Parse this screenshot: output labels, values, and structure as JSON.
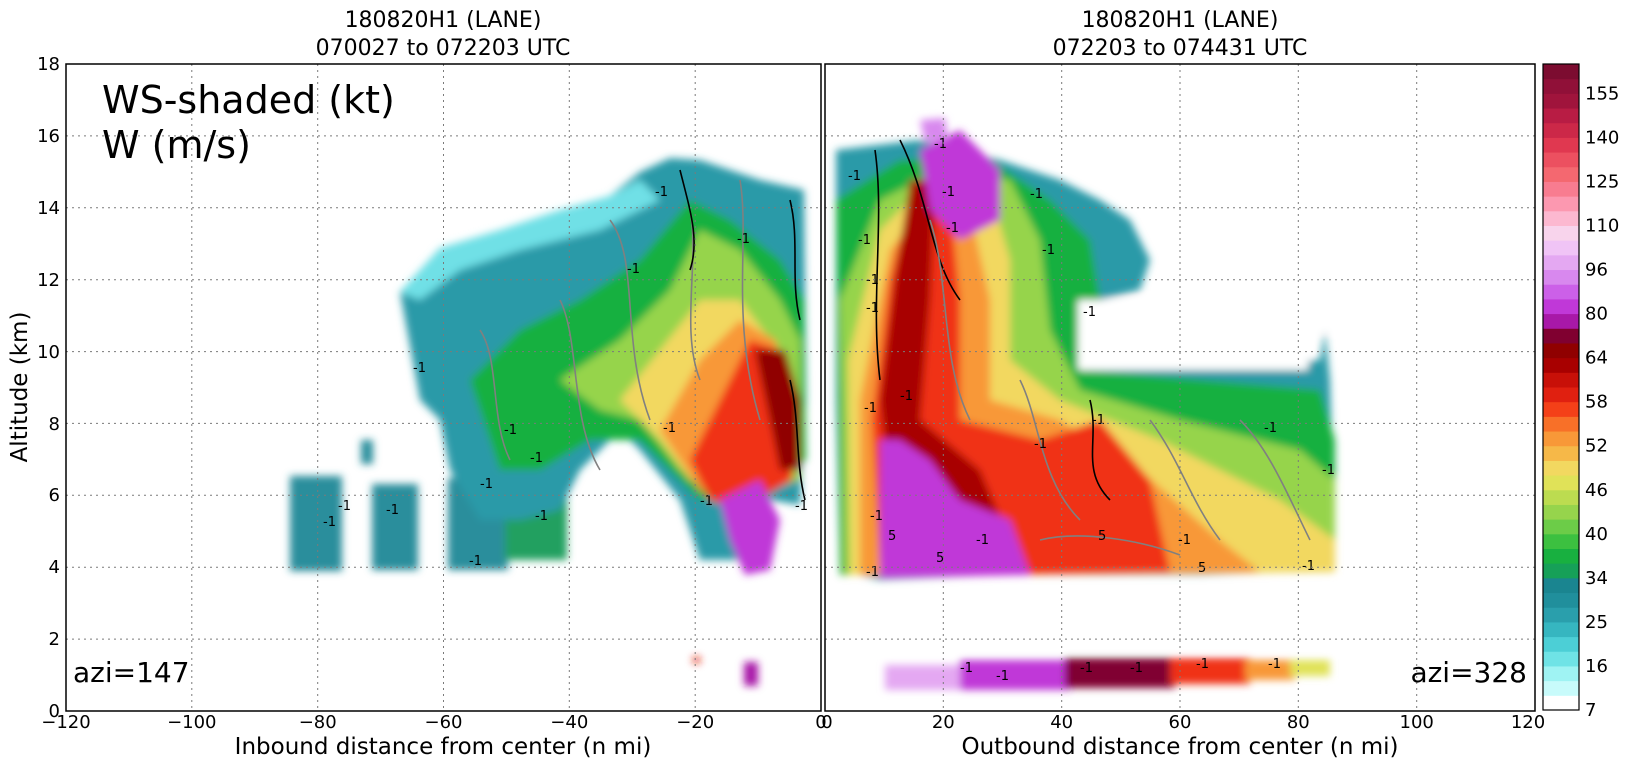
{
  "chart_data": {
    "type": "heatmap",
    "left_panel": {
      "title_line1": "180820H1 (LANE)",
      "title_line2": "070027 to 072203 UTC",
      "xlabel": "Inbound distance from center (n mi)",
      "ylabel": "Altitude (km)",
      "xlim": [
        -120,
        0
      ],
      "ylim": [
        0,
        18
      ],
      "x_ticks": [
        "−120",
        "−100",
        "−80",
        "−60",
        "−40",
        "−20",
        "0"
      ],
      "y_ticks": [
        "0",
        "2",
        "4",
        "6",
        "8",
        "10",
        "12",
        "14",
        "16",
        "18"
      ],
      "annotation_line1": "WS-shaded (kt)",
      "annotation_line2": "W (m/s)",
      "azimuth_label": "azi=147",
      "grid": true
    },
    "right_panel": {
      "title_line1": "180820H1 (LANE)",
      "title_line2": "072203 to 074431 UTC",
      "xlabel": "Outbound distance from center (n mi)",
      "xlim": [
        0,
        120
      ],
      "ylim": [
        0,
        18
      ],
      "x_ticks": [
        "0",
        "20",
        "40",
        "60",
        "80",
        "100",
        "120"
      ],
      "azimuth_label": "azi=328",
      "grid": true
    },
    "colorbar": {
      "tick_labels": [
        "7",
        "16",
        "25",
        "34",
        "40",
        "46",
        "52",
        "58",
        "64",
        "80",
        "96",
        "110",
        "125",
        "140",
        "155"
      ],
      "tick_values": [
        7,
        16,
        25,
        34,
        40,
        46,
        52,
        58,
        64,
        80,
        96,
        110,
        125,
        140,
        155
      ],
      "levels": [
        7,
        10,
        13,
        16,
        19,
        22,
        25,
        28,
        31,
        34,
        36,
        38,
        40,
        42,
        44,
        46,
        48,
        50,
        52,
        54,
        56,
        58,
        60,
        62,
        64,
        69,
        74,
        80,
        85,
        90,
        96,
        100,
        105,
        110,
        115,
        120,
        125,
        130,
        135,
        140,
        145,
        150,
        155,
        160
      ],
      "colors": [
        "#ffffff",
        "#c8fbfb",
        "#9ff3f3",
        "#6fe3e6",
        "#4ccfd6",
        "#36b6c0",
        "#2a9fac",
        "#208f9c",
        "#1a8590",
        "#16a058",
        "#18b040",
        "#3cc040",
        "#6ccc48",
        "#96d44c",
        "#bcdc50",
        "#e0e258",
        "#f2d860",
        "#f6b848",
        "#f89838",
        "#f87028",
        "#f44018",
        "#e02010",
        "#c81008",
        "#a80000",
        "#900000",
        "#800030",
        "#a818a8",
        "#c038d8",
        "#cc60e8",
        "#d888ee",
        "#e4a8f2",
        "#f0c4f6",
        "#f8d4ec",
        "#fcb8d0",
        "#fc98b0",
        "#f87c90",
        "#f46870",
        "#ec5060",
        "#e03850",
        "#cc2848",
        "#b81c44",
        "#a0143c",
        "#901038",
        "#7c0c30"
      ],
      "colormap_note": ""
    },
    "contour_levels_labelled": [
      "-1",
      "-1",
      "-1",
      "-1",
      "-1",
      "-1",
      "-1",
      "-1",
      "-1",
      "-1",
      "-1",
      "-1",
      "-1",
      "-1",
      "-1",
      "-1",
      "-1",
      "-1",
      "-1",
      "-1",
      "-1",
      "-1",
      "-1",
      "-1",
      "-1",
      "-1",
      "-1",
      "-1",
      "-1",
      "-1",
      "-1",
      "-1",
      "-1",
      "-1",
      "-1",
      "-1",
      "-1",
      "-1",
      "-1",
      "-1",
      "-1",
      "5",
      "5",
      "5",
      "5",
      "-1"
    ]
  },
  "colors": {
    "contour_positive": "#808080",
    "contour_negative": "#000000",
    "grid": "#7a7a7a"
  }
}
